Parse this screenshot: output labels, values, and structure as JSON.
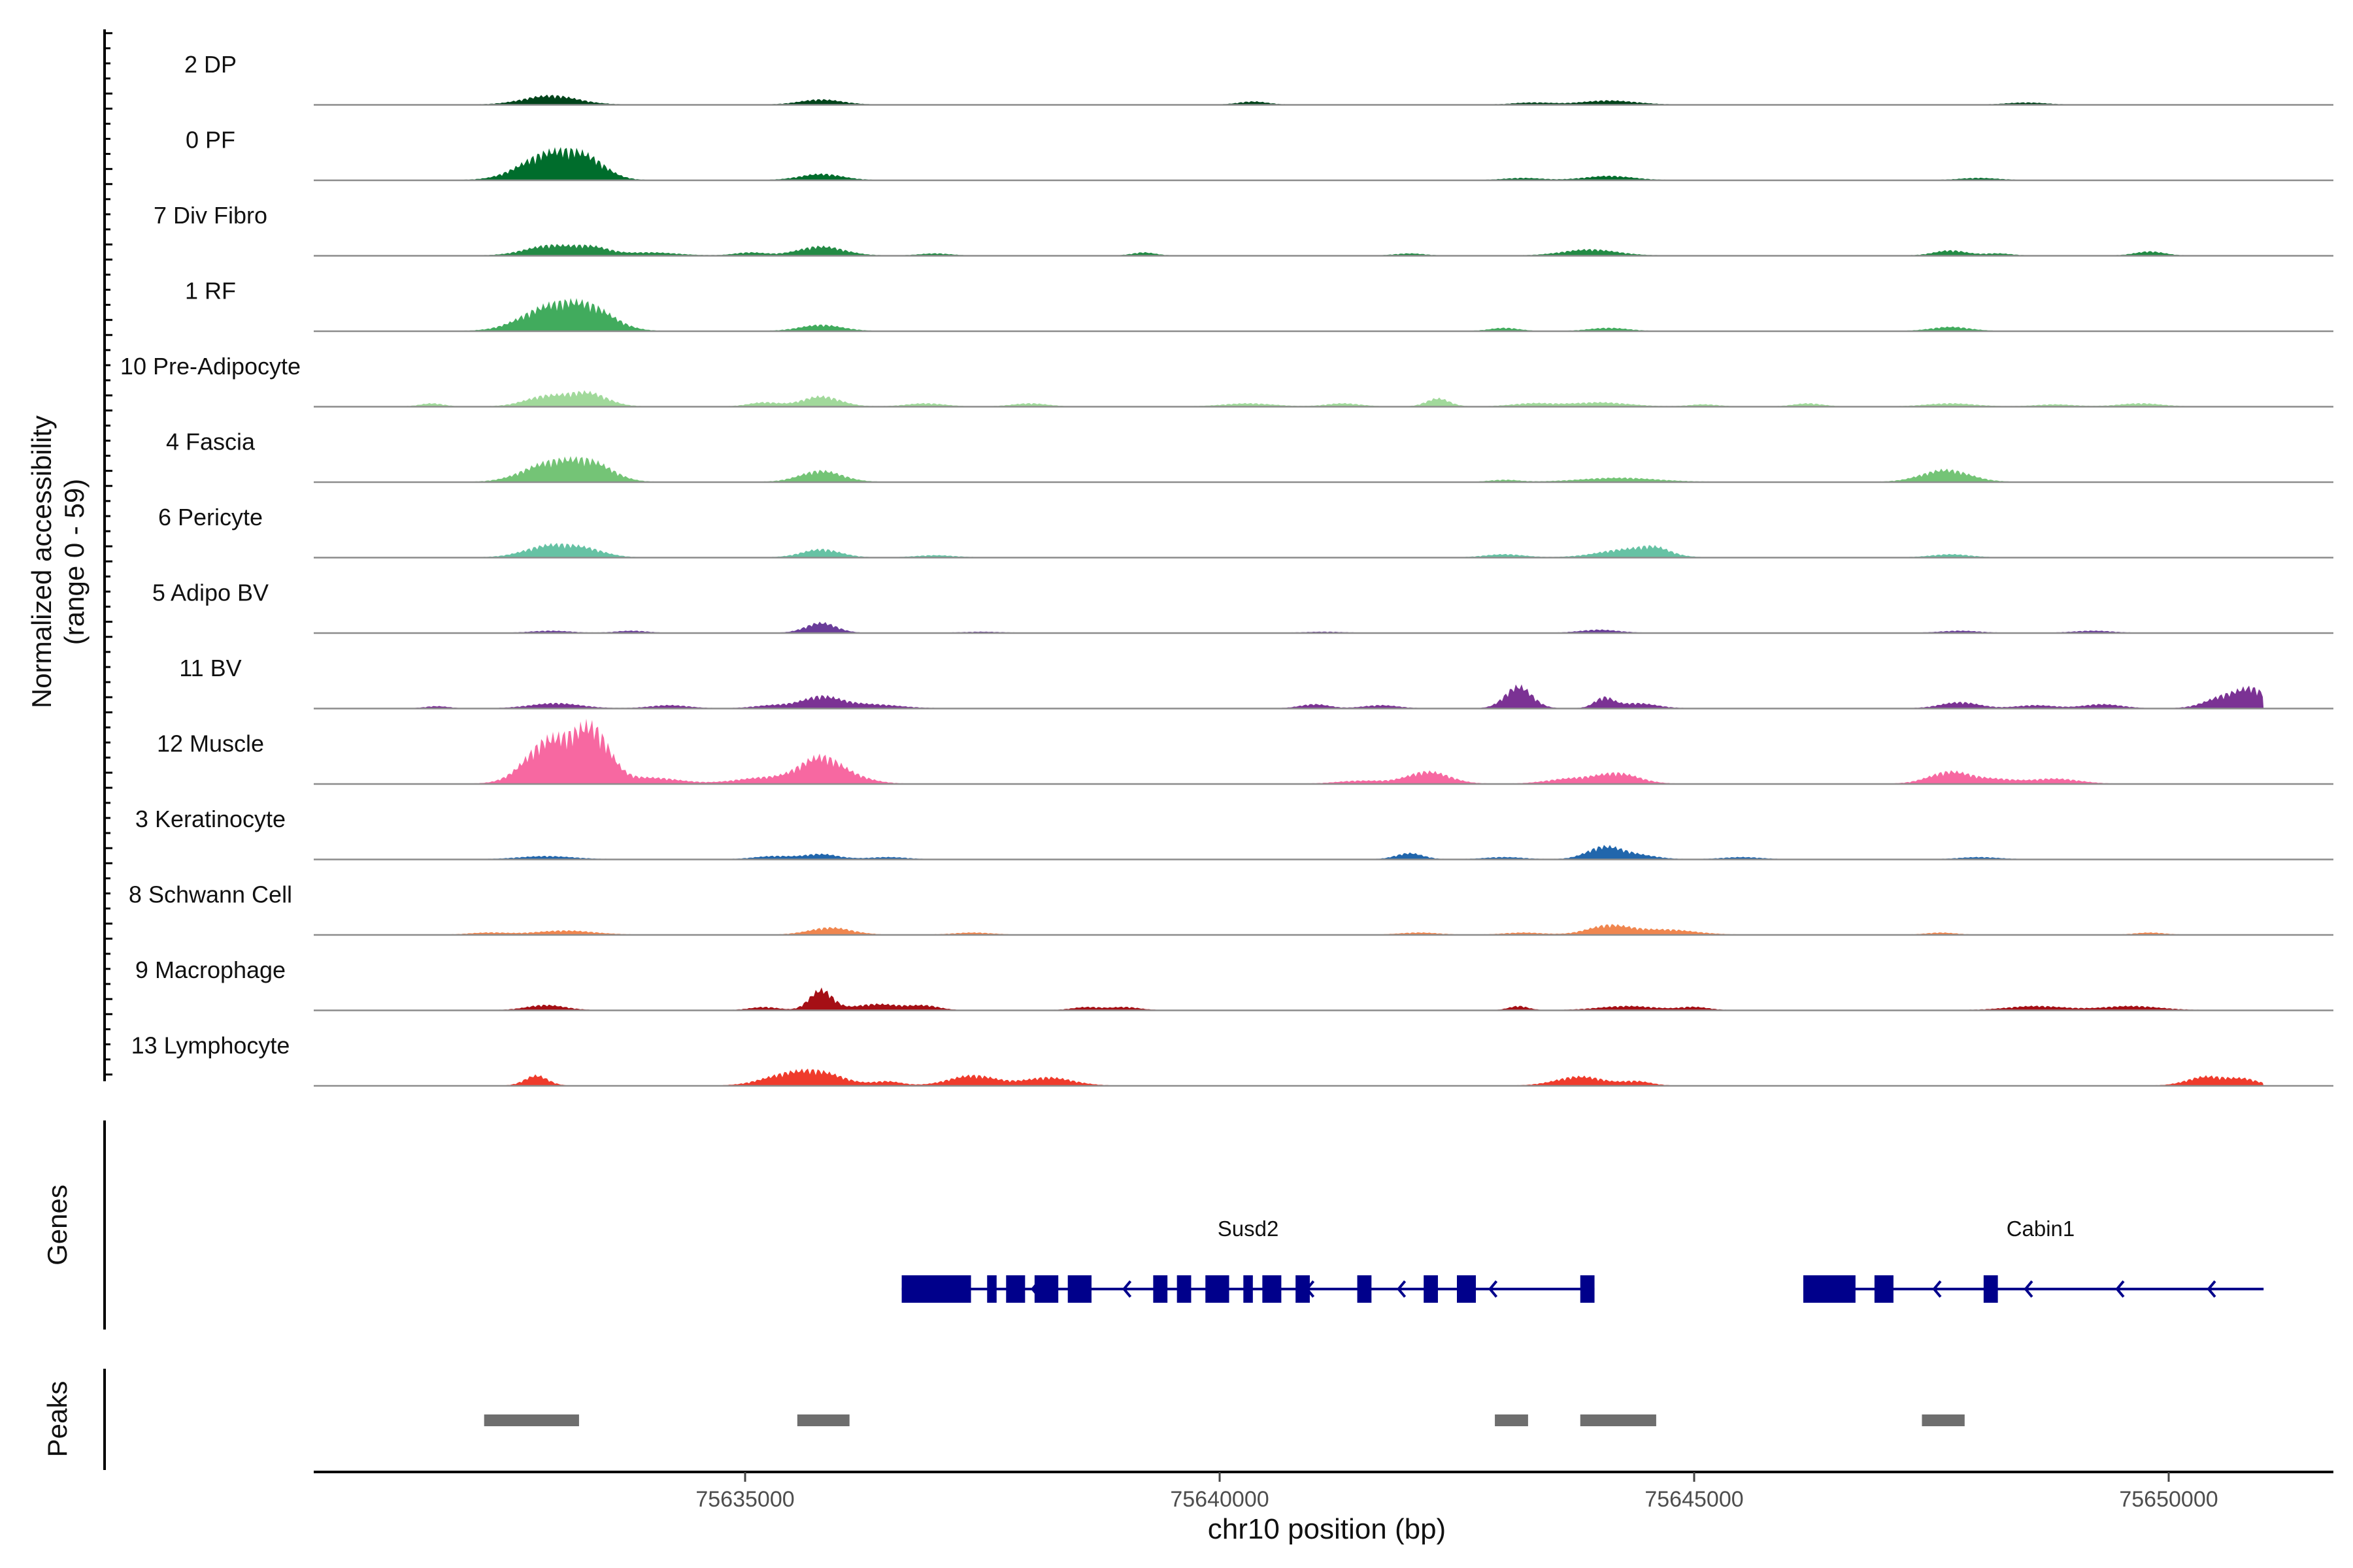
{
  "chart_data": {
    "type": "area",
    "title": "",
    "chromosome": "chr10",
    "xlabel": "chr10 position (bp)",
    "ylabel_line1": "Normalized accessibility",
    "ylabel_line2": "(range 0 - 59)",
    "ylim": [
      0,
      59
    ],
    "xlim": [
      75630700,
      75652000
    ],
    "xticks": [
      75635000,
      75640000,
      75645000,
      75650000
    ],
    "track_labels": {
      "genes": "Genes",
      "peaks": "Peaks"
    },
    "series": [
      {
        "name": "2 DP",
        "color": "#00441b",
        "peaks": [
          [
            75632950,
            9,
            280
          ],
          [
            75635800,
            5,
            220
          ],
          [
            75640350,
            3,
            150
          ],
          [
            75643300,
            2,
            200
          ],
          [
            75644100,
            4,
            280
          ],
          [
            75648500,
            2,
            200
          ]
        ]
      },
      {
        "name": "0 PF",
        "color": "#006d2c",
        "peaks": [
          [
            75632950,
            27,
            300
          ],
          [
            75633350,
            14,
            200
          ],
          [
            75635800,
            6,
            220
          ],
          [
            75643200,
            2,
            200
          ],
          [
            75644100,
            4,
            250
          ],
          [
            75648000,
            2,
            200
          ]
        ]
      },
      {
        "name": "7 Div Fibro",
        "color": "#238b45",
        "peaks": [
          [
            75632950,
            10,
            260
          ],
          [
            75633400,
            7,
            180
          ],
          [
            75634000,
            3,
            280
          ],
          [
            75635050,
            3,
            160
          ],
          [
            75635800,
            9,
            240
          ],
          [
            75637000,
            2,
            160
          ],
          [
            75639200,
            3,
            120
          ],
          [
            75642000,
            2,
            150
          ],
          [
            75643900,
            6,
            280
          ],
          [
            75647700,
            5,
            170
          ],
          [
            75648200,
            2,
            140
          ],
          [
            75649800,
            4,
            150
          ]
        ]
      },
      {
        "name": "1 RF",
        "color": "#41ab5d",
        "peaks": [
          [
            75632950,
            24,
            300
          ],
          [
            75633400,
            18,
            240
          ],
          [
            75635800,
            6,
            220
          ],
          [
            75643000,
            3,
            150
          ],
          [
            75644100,
            3,
            200
          ],
          [
            75647700,
            4,
            200
          ]
        ]
      },
      {
        "name": "10 Pre-Adipocyte",
        "color": "#a1d99b",
        "peaks": [
          [
            75631700,
            3,
            120
          ],
          [
            75632900,
            10,
            220
          ],
          [
            75633350,
            13,
            200
          ],
          [
            75635200,
            4,
            160
          ],
          [
            75635800,
            10,
            200
          ],
          [
            75636900,
            3,
            200
          ],
          [
            75638000,
            3,
            180
          ],
          [
            75640300,
            3,
            260
          ],
          [
            75641300,
            3,
            180
          ],
          [
            75642300,
            8,
            120
          ],
          [
            75643300,
            3,
            220
          ],
          [
            75644000,
            4,
            300
          ],
          [
            75645100,
            2,
            150
          ],
          [
            75646200,
            3,
            150
          ],
          [
            75647700,
            3,
            250
          ],
          [
            75648800,
            2,
            200
          ],
          [
            75649700,
            3,
            220
          ]
        ]
      },
      {
        "name": "4 Fascia",
        "color": "#74c476",
        "peaks": [
          [
            75632950,
            19,
            280
          ],
          [
            75633400,
            16,
            220
          ],
          [
            75635800,
            11,
            220
          ],
          [
            75643000,
            2,
            150
          ],
          [
            75644200,
            4,
            400
          ],
          [
            75647650,
            12,
            250
          ]
        ]
      },
      {
        "name": "6 Pericyte",
        "color": "#66c2a4",
        "peaks": [
          [
            75632950,
            12,
            260
          ],
          [
            75633350,
            6,
            200
          ],
          [
            75635800,
            8,
            200
          ],
          [
            75637000,
            2,
            200
          ],
          [
            75643000,
            3,
            200
          ],
          [
            75644300,
            8,
            300
          ],
          [
            75644600,
            6,
            150
          ],
          [
            75647700,
            3,
            200
          ]
        ]
      },
      {
        "name": "5 Adipo BV",
        "color": "#6a3d9a",
        "peaks": [
          [
            75632950,
            2,
            200
          ],
          [
            75633800,
            2,
            160
          ],
          [
            75635800,
            10,
            160
          ],
          [
            75637500,
            1,
            200
          ],
          [
            75641100,
            1,
            200
          ],
          [
            75644000,
            3,
            200
          ],
          [
            75647800,
            2,
            200
          ],
          [
            75649200,
            2,
            200
          ]
        ]
      },
      {
        "name": "11 BV",
        "color": "#7b3294",
        "peaks": [
          [
            75631750,
            2,
            120
          ],
          [
            75633000,
            5,
            260
          ],
          [
            75634200,
            3,
            200
          ],
          [
            75635300,
            3,
            200
          ],
          [
            75635800,
            11,
            200
          ],
          [
            75636300,
            4,
            300
          ],
          [
            75641000,
            4,
            150
          ],
          [
            75641700,
            3,
            180
          ],
          [
            75643150,
            22,
            140
          ],
          [
            75644050,
            10,
            100
          ],
          [
            75644400,
            5,
            200
          ],
          [
            75647800,
            6,
            200
          ],
          [
            75648600,
            3,
            200
          ],
          [
            75649300,
            4,
            200
          ],
          [
            75650600,
            12,
            200
          ],
          [
            75650900,
            16,
            150
          ]
        ]
      },
      {
        "name": "12 Muscle",
        "color": "#f768a1",
        "peaks": [
          [
            75632950,
            44,
            250
          ],
          [
            75633400,
            48,
            180
          ],
          [
            75634000,
            6,
            300
          ],
          [
            75635200,
            6,
            300
          ],
          [
            75635800,
            26,
            220
          ],
          [
            75636200,
            4,
            200
          ],
          [
            75641500,
            3,
            250
          ],
          [
            75642200,
            12,
            220
          ],
          [
            75643700,
            5,
            250
          ],
          [
            75644200,
            10,
            220
          ],
          [
            75647700,
            12,
            220
          ],
          [
            75648200,
            4,
            200
          ],
          [
            75648800,
            5,
            250
          ]
        ]
      },
      {
        "name": "3 Keratinocyte",
        "color": "#2166ac",
        "peaks": [
          [
            75632900,
            3,
            280
          ],
          [
            75635300,
            3,
            200
          ],
          [
            75635800,
            5,
            180
          ],
          [
            75636500,
            2,
            200
          ],
          [
            75642000,
            6,
            140
          ],
          [
            75643000,
            2,
            200
          ],
          [
            75644050,
            12,
            180
          ],
          [
            75644400,
            4,
            200
          ],
          [
            75645500,
            2,
            200
          ],
          [
            75648000,
            2,
            200
          ]
        ]
      },
      {
        "name": "8 Schwann Cell",
        "color": "#f0864f",
        "peaks": [
          [
            75632300,
            2,
            200
          ],
          [
            75633100,
            4,
            300
          ],
          [
            75635900,
            7,
            220
          ],
          [
            75637400,
            2,
            200
          ],
          [
            75642100,
            2,
            200
          ],
          [
            75643200,
            2,
            200
          ],
          [
            75644100,
            9,
            220
          ],
          [
            75644700,
            5,
            300
          ],
          [
            75647600,
            2,
            150
          ],
          [
            75649800,
            2,
            150
          ]
        ]
      },
      {
        "name": "9 Macrophage",
        "color": "#a50f15",
        "peaks": [
          [
            75632900,
            5,
            200
          ],
          [
            75635200,
            3,
            150
          ],
          [
            75635800,
            20,
            120
          ],
          [
            75636400,
            6,
            250
          ],
          [
            75636900,
            4,
            150
          ],
          [
            75638600,
            3,
            150
          ],
          [
            75639000,
            3,
            150
          ],
          [
            75643150,
            4,
            100
          ],
          [
            75644300,
            4,
            300
          ],
          [
            75645000,
            3,
            150
          ],
          [
            75648600,
            4,
            300
          ],
          [
            75649600,
            4,
            300
          ]
        ]
      },
      {
        "name": "13 Lymphocyte",
        "color": "#ef3b2c",
        "peaks": [
          [
            75632800,
            10,
            120
          ],
          [
            75635400,
            9,
            250
          ],
          [
            75635800,
            12,
            250
          ],
          [
            75636500,
            4,
            150
          ],
          [
            75637400,
            10,
            250
          ],
          [
            75638200,
            8,
            250
          ],
          [
            75643800,
            9,
            250
          ],
          [
            75644400,
            4,
            150
          ],
          [
            75650400,
            9,
            200
          ],
          [
            75650800,
            6,
            150
          ]
        ]
      }
    ],
    "genes": [
      {
        "name": "Susd2",
        "strand": "-",
        "start": 75636650,
        "end": 75643950,
        "exons": [
          [
            75636650,
            75637380
          ],
          [
            75637550,
            75637650
          ],
          [
            75637750,
            75637950
          ],
          [
            75638050,
            75638300
          ],
          [
            75638400,
            75638650
          ],
          [
            75639300,
            75639450
          ],
          [
            75639550,
            75639700
          ],
          [
            75639850,
            75640100
          ],
          [
            75640250,
            75640350
          ],
          [
            75640450,
            75640650
          ],
          [
            75640800,
            75640950
          ],
          [
            75641450,
            75641600
          ],
          [
            75642150,
            75642300
          ],
          [
            75642500,
            75642700
          ],
          [
            75643800,
            75643950
          ]
        ]
      },
      {
        "name": "Cabin1",
        "strand": "-",
        "start": 75646150,
        "end": 75651000,
        "exons": [
          [
            75646150,
            75646700
          ],
          [
            75646900,
            75647100
          ],
          [
            75648050,
            75648200
          ]
        ]
      }
    ],
    "peak_regions": [
      [
        75632250,
        75633250
      ],
      [
        75635550,
        75636100
      ],
      [
        75642900,
        75643250
      ],
      [
        75643800,
        75644600
      ],
      [
        75647400,
        75647850
      ]
    ]
  }
}
